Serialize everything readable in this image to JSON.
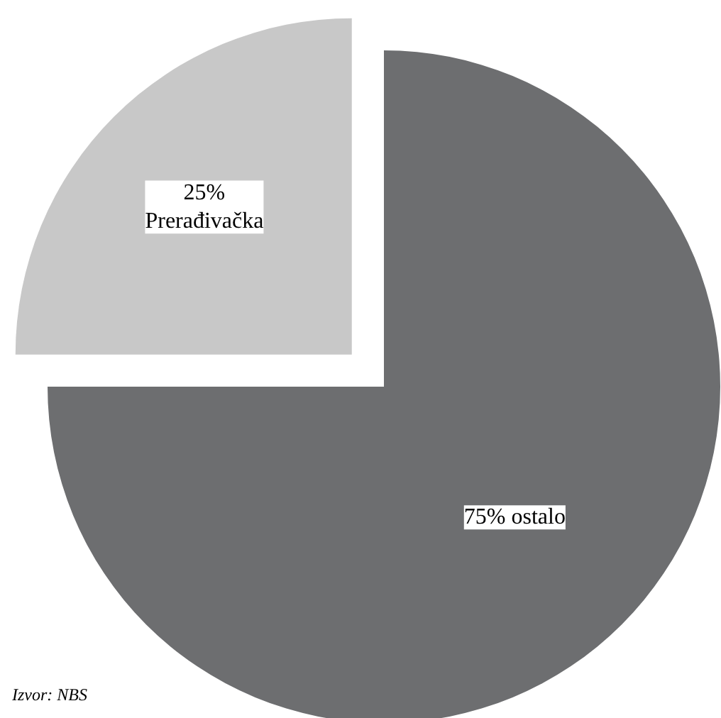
{
  "chart_data": {
    "type": "pie",
    "categories": [
      "Prerađivačka",
      "ostalo"
    ],
    "values": [
      25,
      75
    ],
    "colors": [
      "#c8c8c8",
      "#6d6e70"
    ],
    "value_labels": [
      "25%",
      "75%"
    ],
    "annotations": [
      "Izvor: NBS"
    ]
  }
}
